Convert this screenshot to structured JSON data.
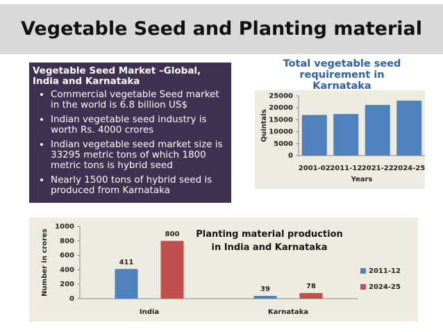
{
  "slide_title": "Vegetable Seed and Planting material",
  "text_box": {
    "heading": "Vegetable Seed Market –Global, India and Karnataka",
    "bullets": [
      "Commercial vegetable Seed market in the world is 6.8 billion US$",
      "Indian vegetable seed industry is worth  Rs. 4000 crores",
      "Indian vegetable seed market size is 33295 metric tons of which 1800 metric tons is hybrid seed",
      "Nearly 1500 tons of hybrid seed is produced from Karnataka"
    ]
  },
  "chart_data": [
    {
      "type": "bar",
      "title": "Total vegetable  seed requirement  in Karnataka",
      "y_label": "Quintals",
      "x_label": "Years",
      "categories": [
        "2001-02",
        "2011-12",
        "2021-22",
        "2024-25"
      ],
      "values": [
        17000,
        17400,
        21200,
        23000
      ],
      "color": "#4f81bd",
      "ylim": [
        0,
        25000
      ],
      "yticks": [
        0,
        5000,
        10000,
        15000,
        20000,
        25000
      ],
      "grid": false
    },
    {
      "type": "grouped_bar",
      "title": "Planting material production in India and Karnataka",
      "y_label": "Number in crores",
      "categories": [
        "India",
        "Karnataka"
      ],
      "series": [
        {
          "name": "2011-12",
          "color": "#4f81bd",
          "values": [
            411,
            39
          ]
        },
        {
          "name": "2024-25",
          "color": "#c0504d",
          "values": [
            800,
            78
          ]
        }
      ],
      "ylim": [
        0,
        1000
      ],
      "yticks": [
        0,
        200,
        400,
        600,
        800,
        1000
      ],
      "grid": false,
      "legend": "right",
      "data_labels": true
    }
  ]
}
